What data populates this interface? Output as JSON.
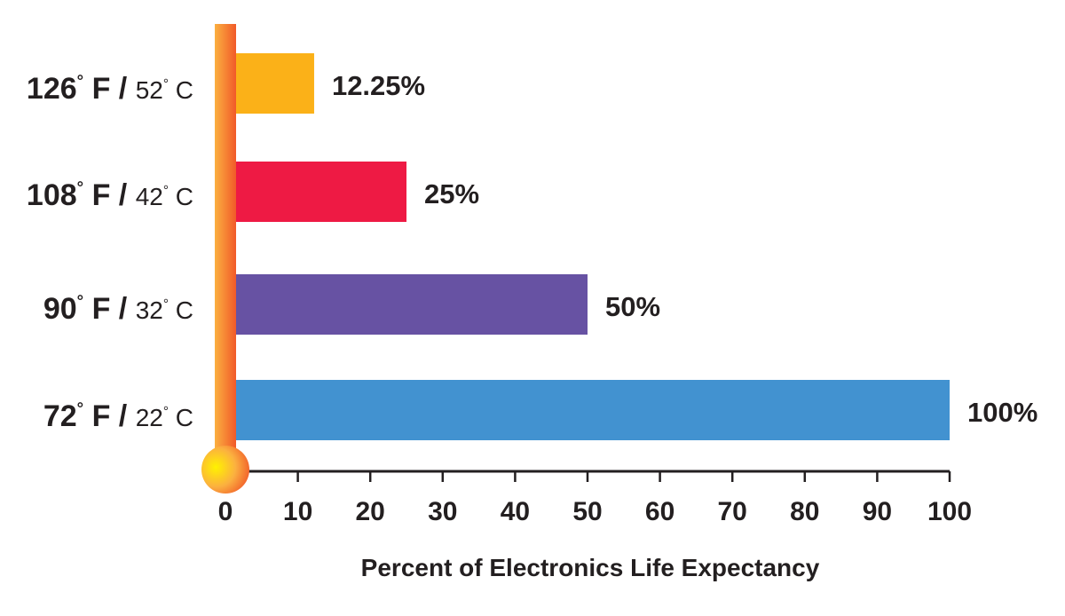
{
  "chart_data": {
    "type": "bar",
    "orientation": "horizontal",
    "categories": [
      {
        "fahrenheit": "126",
        "celsius": "52",
        "f_unit": "F",
        "c_unit": "C",
        "separator": "/"
      },
      {
        "fahrenheit": "108",
        "celsius": "42",
        "f_unit": "F",
        "c_unit": "C",
        "separator": "/"
      },
      {
        "fahrenheit": "90",
        "celsius": "32",
        "f_unit": "F",
        "c_unit": "C",
        "separator": "/"
      },
      {
        "fahrenheit": "72",
        "celsius": "22",
        "f_unit": "F",
        "c_unit": "C",
        "separator": "/"
      }
    ],
    "values": [
      12.25,
      25,
      50,
      100
    ],
    "value_labels": [
      "12.25%",
      "25%",
      "50%",
      "100%"
    ],
    "colors": [
      "#fbb118",
      "#ee1a44",
      "#6752a3",
      "#4292d0"
    ],
    "xlabel": "Percent of Electronics Life Expectancy",
    "xlim": [
      0,
      100
    ],
    "xticks": [
      "0",
      "10",
      "20",
      "30",
      "40",
      "50",
      "60",
      "70",
      "80",
      "90",
      "100"
    ],
    "thermometer_color": "#f7941d",
    "bulb_color": "#fcd116"
  }
}
